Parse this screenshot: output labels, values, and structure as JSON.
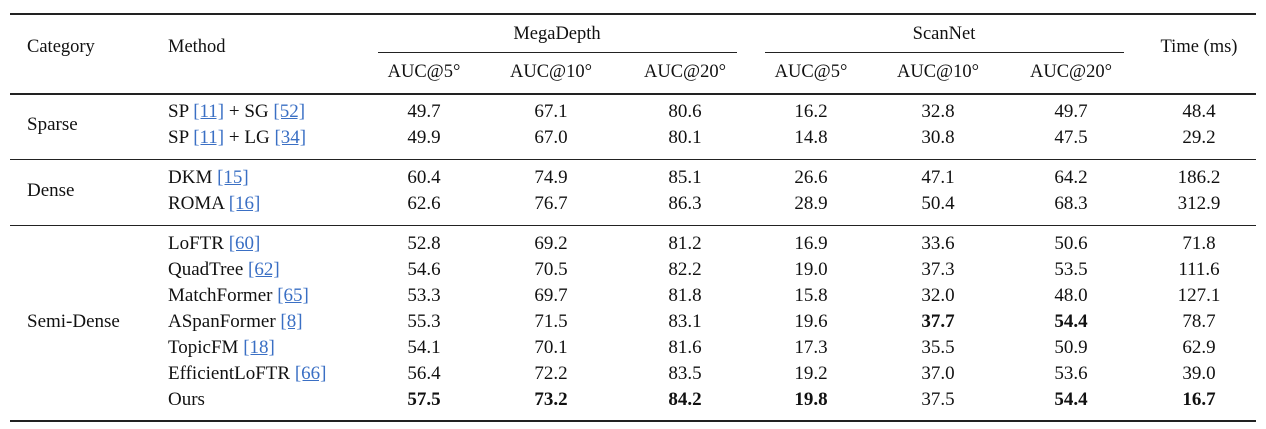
{
  "headers": {
    "category": "Category",
    "method": "Method",
    "megadepth": "MegaDepth",
    "scannet": "ScanNet",
    "time": "Time (ms)",
    "auc5": "AUC@5°",
    "auc10": "AUC@10°",
    "auc20": "AUC@20°"
  },
  "groups": [
    {
      "category": "Sparse",
      "rows": [
        {
          "method_parts": [
            {
              "text": "SP "
            },
            {
              "text": "[11]",
              "ref": true
            },
            {
              "text": " + SG "
            },
            {
              "text": "[52]",
              "ref": true
            }
          ],
          "values": [
            "49.7",
            "67.1",
            "80.6",
            "16.2",
            "32.8",
            "49.7",
            "48.4"
          ],
          "bold": [
            false,
            false,
            false,
            false,
            false,
            false,
            false
          ]
        },
        {
          "method_parts": [
            {
              "text": "SP "
            },
            {
              "text": "[11]",
              "ref": true
            },
            {
              "text": " + LG "
            },
            {
              "text": "[34]",
              "ref": true
            }
          ],
          "values": [
            "49.9",
            "67.0",
            "80.1",
            "14.8",
            "30.8",
            "47.5",
            "29.2"
          ],
          "bold": [
            false,
            false,
            false,
            false,
            false,
            false,
            false
          ]
        }
      ]
    },
    {
      "category": "Dense",
      "rows": [
        {
          "method_parts": [
            {
              "text": "DKM "
            },
            {
              "text": "[15]",
              "ref": true
            }
          ],
          "values": [
            "60.4",
            "74.9",
            "85.1",
            "26.6",
            "47.1",
            "64.2",
            "186.2"
          ],
          "bold": [
            false,
            false,
            false,
            false,
            false,
            false,
            false
          ]
        },
        {
          "method_parts": [
            {
              "text": "ROMA "
            },
            {
              "text": "[16]",
              "ref": true
            }
          ],
          "values": [
            "62.6",
            "76.7",
            "86.3",
            "28.9",
            "50.4",
            "68.3",
            "312.9"
          ],
          "bold": [
            false,
            false,
            false,
            false,
            false,
            false,
            false
          ]
        }
      ]
    },
    {
      "category": "Semi-Dense",
      "rows": [
        {
          "method_parts": [
            {
              "text": "LoFTR "
            },
            {
              "text": "[60]",
              "ref": true
            }
          ],
          "values": [
            "52.8",
            "69.2",
            "81.2",
            "16.9",
            "33.6",
            "50.6",
            "71.8"
          ],
          "bold": [
            false,
            false,
            false,
            false,
            false,
            false,
            false
          ]
        },
        {
          "method_parts": [
            {
              "text": "QuadTree "
            },
            {
              "text": "[62]",
              "ref": true
            }
          ],
          "values": [
            "54.6",
            "70.5",
            "82.2",
            "19.0",
            "37.3",
            "53.5",
            "111.6"
          ],
          "bold": [
            false,
            false,
            false,
            false,
            false,
            false,
            false
          ]
        },
        {
          "method_parts": [
            {
              "text": "MatchFormer "
            },
            {
              "text": "[65]",
              "ref": true
            }
          ],
          "values": [
            "53.3",
            "69.7",
            "81.8",
            "15.8",
            "32.0",
            "48.0",
            "127.1"
          ],
          "bold": [
            false,
            false,
            false,
            false,
            false,
            false,
            false
          ]
        },
        {
          "method_parts": [
            {
              "text": "ASpanFormer "
            },
            {
              "text": "[8]",
              "ref": true
            }
          ],
          "values": [
            "55.3",
            "71.5",
            "83.1",
            "19.6",
            "37.7",
            "54.4",
            "78.7"
          ],
          "bold": [
            false,
            false,
            false,
            false,
            true,
            true,
            false
          ]
        },
        {
          "method_parts": [
            {
              "text": "TopicFM "
            },
            {
              "text": "[18]",
              "ref": true
            }
          ],
          "values": [
            "54.1",
            "70.1",
            "81.6",
            "17.3",
            "35.5",
            "50.9",
            "62.9"
          ],
          "bold": [
            false,
            false,
            false,
            false,
            false,
            false,
            false
          ]
        },
        {
          "method_parts": [
            {
              "text": "EfficientLoFTR "
            },
            {
              "text": "[66]",
              "ref": true
            }
          ],
          "values": [
            "56.4",
            "72.2",
            "83.5",
            "19.2",
            "37.0",
            "53.6",
            "39.0"
          ],
          "bold": [
            false,
            false,
            false,
            false,
            false,
            false,
            false
          ]
        },
        {
          "method_parts": [
            {
              "text": "Ours"
            }
          ],
          "values": [
            "57.5",
            "73.2",
            "84.2",
            "19.8",
            "37.5",
            "54.4",
            "16.7"
          ],
          "bold": [
            true,
            true,
            true,
            true,
            false,
            true,
            true
          ]
        }
      ]
    }
  ]
}
